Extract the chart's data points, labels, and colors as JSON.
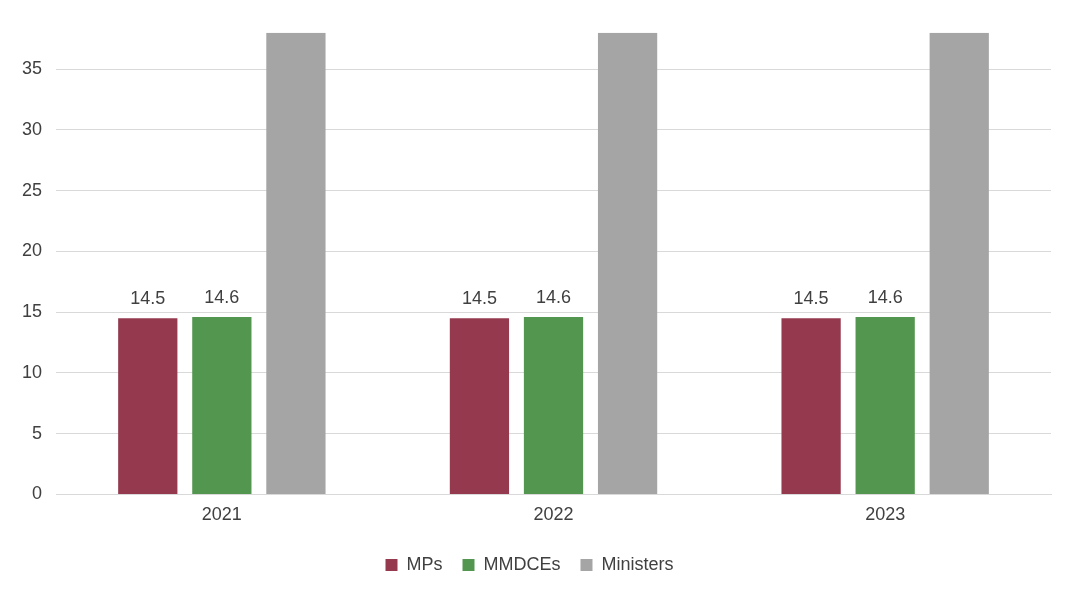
{
  "chart_data": {
    "type": "bar",
    "categories": [
      "2021",
      "2022",
      "2023"
    ],
    "series": [
      {
        "name": "MPs",
        "color": "#953a4e",
        "values": [
          14.5,
          14.5,
          14.5
        ],
        "value_labels": [
          "14.5",
          "14.5",
          "14.5"
        ]
      },
      {
        "name": "MMDCEs",
        "color": "#53964f",
        "values": [
          14.6,
          14.6,
          14.6
        ],
        "value_labels": [
          "14.6",
          "14.6",
          "14.6"
        ]
      },
      {
        "name": "Ministers",
        "color": "#a5a5a5",
        "values": [
          38,
          38,
          38
        ]
      }
    ],
    "ylim": [
      0,
      38
    ],
    "yticks": [
      0,
      5,
      10,
      15,
      20,
      25,
      30,
      35
    ],
    "grid": "y",
    "legend": "bottom"
  }
}
